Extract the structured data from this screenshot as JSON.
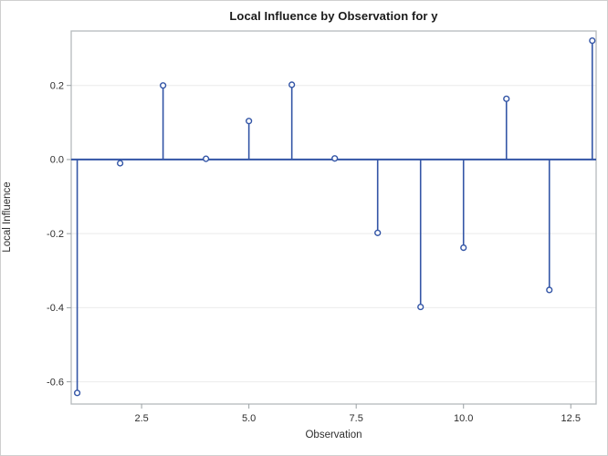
{
  "title": "Local Influence by Observation for y",
  "chart_data": {
    "type": "needle",
    "title": "Local Influence by Observation for y",
    "xlabel": "Observation",
    "ylabel": "Local Influence",
    "x": [
      1,
      2,
      3,
      4,
      5,
      6,
      7,
      8,
      9,
      10,
      11,
      12,
      13
    ],
    "values": [
      -0.63,
      -0.01,
      0.2,
      0.002,
      0.104,
      0.202,
      0.003,
      -0.198,
      -0.398,
      -0.238,
      0.164,
      -0.352,
      0.321
    ],
    "baseline": 0,
    "xlim": [
      0.86,
      13.09
    ],
    "ylim": [
      -0.66,
      0.347
    ],
    "xticks": [
      2.5,
      5.0,
      7.5,
      10.0,
      12.5
    ],
    "xtick_labels": [
      "2.5",
      "5.0",
      "7.5",
      "10.0",
      "12.5"
    ],
    "yticks": [
      0.2,
      0.0,
      -0.2,
      -0.4,
      -0.6
    ],
    "ytick_labels": [
      "0.2",
      "0.0",
      "-0.2",
      "-0.4",
      "-0.6"
    ],
    "grid": "horizontal",
    "legend": "none",
    "marker": "open-circle",
    "colors": {
      "stem": "#3355A6",
      "marker_stroke": "#3355A6",
      "marker_fill": "#ffffff",
      "frame": "#b5babd",
      "gridline": "#ebebeb",
      "tick": "#9aa0a3",
      "tick_text": "#2e2e2e",
      "background": "#ffffff"
    }
  }
}
